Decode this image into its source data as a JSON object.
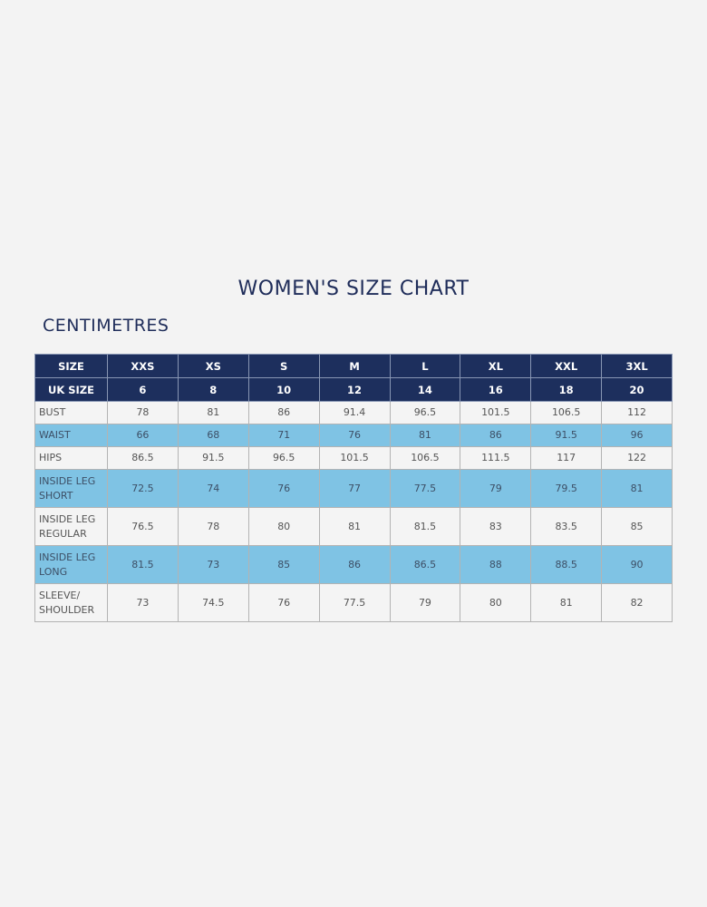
{
  "title": "WOMEN'S SIZE CHART",
  "subtitle": "CENTIMETRES",
  "table": {
    "header": [
      [
        "SIZE",
        "XXS",
        "XS",
        "S",
        "M",
        "L",
        "XL",
        "XXL",
        "3XL"
      ],
      [
        "UK SIZE",
        "6",
        "8",
        "10",
        "12",
        "14",
        "16",
        "18",
        "20"
      ]
    ],
    "rows": [
      [
        "BUST",
        "78",
        "81",
        "86",
        "91.4",
        "96.5",
        "101.5",
        "106.5",
        "112"
      ],
      [
        "WAIST",
        "66",
        "68",
        "71",
        "76",
        "81",
        "86",
        "91.5",
        "96"
      ],
      [
        "HIPS",
        "86.5",
        "91.5",
        "96.5",
        "101.5",
        "106.5",
        "111.5",
        "117",
        "122"
      ],
      [
        "INSIDE LEG SHORT",
        "72.5",
        "74",
        "76",
        "77",
        "77.5",
        "79",
        "79.5",
        "81"
      ],
      [
        "INSIDE LEG REGULAR",
        "76.5",
        "78",
        "80",
        "81",
        "81.5",
        "83",
        "83.5",
        "85"
      ],
      [
        "INSIDE LEG LONG",
        "81.5",
        "73",
        "85",
        "86",
        "86.5",
        "88",
        "88.5",
        "90"
      ],
      [
        "SLEEVE/ SHOULDER",
        "73",
        "74.5",
        "76",
        "77.5",
        "79",
        "80",
        "81",
        "82"
      ]
    ]
  }
}
